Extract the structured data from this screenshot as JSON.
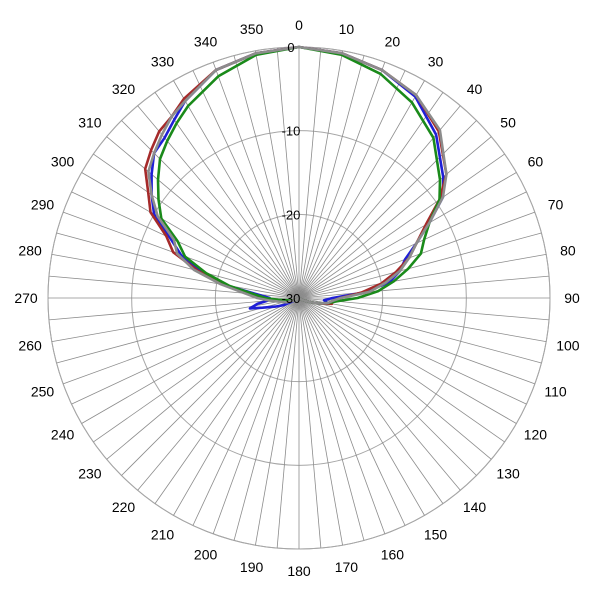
{
  "chart_data": {
    "type": "polar-line",
    "title": "",
    "angle_direction": "clockwise",
    "angle_zero": "top",
    "angle_ticks": [
      0,
      10,
      20,
      30,
      40,
      50,
      60,
      70,
      80,
      90,
      100,
      110,
      120,
      130,
      140,
      150,
      160,
      170,
      180,
      190,
      200,
      210,
      220,
      230,
      240,
      250,
      260,
      270,
      280,
      290,
      300,
      310,
      320,
      330,
      340,
      350
    ],
    "radial_ticks": [
      0,
      -10,
      -20,
      -30
    ],
    "radial_range": [
      -30,
      0
    ],
    "grid": true,
    "series": [
      {
        "color": "#1f1fd6",
        "points": [
          [
            0,
            0
          ],
          [
            10,
            -0.3
          ],
          [
            20,
            -1.0
          ],
          [
            30,
            -2.2
          ],
          [
            40,
            -4.5
          ],
          [
            50,
            -7.5
          ],
          [
            55,
            -9.0
          ],
          [
            60,
            -12.0
          ],
          [
            65,
            -14.5
          ],
          [
            70,
            -16.5
          ],
          [
            75,
            -17.5
          ],
          [
            80,
            -19.0
          ],
          [
            85,
            -22.0
          ],
          [
            90,
            -26.0
          ],
          [
            95,
            -27.0
          ],
          [
            100,
            -26.5
          ],
          [
            105,
            -27.5
          ],
          [
            110,
            -28.5
          ],
          [
            120,
            -29.5
          ],
          [
            180,
            -30
          ],
          [
            240,
            -29.5
          ],
          [
            245,
            -28.0
          ],
          [
            250,
            -27.0
          ],
          [
            255,
            -25.5
          ],
          [
            258,
            -24.0
          ],
          [
            262,
            -25.0
          ],
          [
            266,
            -26.5
          ],
          [
            270,
            -26.5
          ],
          [
            275,
            -25.0
          ],
          [
            280,
            -21.0
          ],
          [
            285,
            -18.0
          ],
          [
            290,
            -15.0
          ],
          [
            295,
            -13.0
          ],
          [
            300,
            -10.0
          ],
          [
            305,
            -8.5
          ],
          [
            310,
            -7.0
          ],
          [
            315,
            -5.5
          ],
          [
            320,
            -5.0
          ],
          [
            325,
            -4.0
          ],
          [
            330,
            -2.8
          ],
          [
            340,
            -1.0
          ],
          [
            350,
            -0.3
          ]
        ]
      },
      {
        "color": "#a52a2a",
        "points": [
          [
            0,
            0
          ],
          [
            10,
            -0.3
          ],
          [
            20,
            -1.0
          ],
          [
            30,
            -2.0
          ],
          [
            40,
            -4.0
          ],
          [
            50,
            -7.0
          ],
          [
            55,
            -9.5
          ],
          [
            60,
            -12.5
          ],
          [
            65,
            -14.5
          ],
          [
            70,
            -16.0
          ],
          [
            75,
            -18.0
          ],
          [
            80,
            -20.0
          ],
          [
            85,
            -22.5
          ],
          [
            90,
            -25.0
          ],
          [
            95,
            -26.0
          ],
          [
            100,
            -26.0
          ],
          [
            105,
            -27.5
          ],
          [
            110,
            -28.5
          ],
          [
            120,
            -29.5
          ],
          [
            180,
            -30
          ],
          [
            240,
            -29.5
          ],
          [
            250,
            -29.0
          ],
          [
            260,
            -28.0
          ],
          [
            265,
            -27.0
          ],
          [
            270,
            -25.5
          ],
          [
            275,
            -24.0
          ],
          [
            280,
            -21.0
          ],
          [
            285,
            -17.5
          ],
          [
            290,
            -14.0
          ],
          [
            295,
            -12.5
          ],
          [
            300,
            -9.5
          ],
          [
            305,
            -8.0
          ],
          [
            310,
            -6.0
          ],
          [
            315,
            -5.0
          ],
          [
            320,
            -4.0
          ],
          [
            325,
            -3.5
          ],
          [
            330,
            -2.5
          ],
          [
            340,
            -1.0
          ],
          [
            350,
            -0.3
          ]
        ]
      },
      {
        "color": "#1a8a1a",
        "points": [
          [
            0,
            0
          ],
          [
            10,
            -0.5
          ],
          [
            20,
            -1.5
          ],
          [
            30,
            -3.0
          ],
          [
            40,
            -5.0
          ],
          [
            50,
            -8.0
          ],
          [
            55,
            -9.5
          ],
          [
            60,
            -12.0
          ],
          [
            65,
            -13.5
          ],
          [
            70,
            -14.5
          ],
          [
            75,
            -16.5
          ],
          [
            80,
            -18.5
          ],
          [
            85,
            -20.5
          ],
          [
            90,
            -23.0
          ],
          [
            95,
            -25.5
          ],
          [
            100,
            -26.5
          ],
          [
            105,
            -27.5
          ],
          [
            110,
            -28.5
          ],
          [
            120,
            -29.5
          ],
          [
            180,
            -30
          ],
          [
            240,
            -29.5
          ],
          [
            250,
            -29.0
          ],
          [
            260,
            -28.5
          ],
          [
            265,
            -27.5
          ],
          [
            270,
            -26.0
          ],
          [
            275,
            -24.5
          ],
          [
            280,
            -21.5
          ],
          [
            285,
            -18.5
          ],
          [
            290,
            -15.5
          ],
          [
            295,
            -14.0
          ],
          [
            300,
            -11.0
          ],
          [
            305,
            -9.5
          ],
          [
            310,
            -8.0
          ],
          [
            315,
            -6.5
          ],
          [
            320,
            -5.5
          ],
          [
            325,
            -4.5
          ],
          [
            330,
            -3.5
          ],
          [
            340,
            -1.8
          ],
          [
            350,
            -0.5
          ]
        ]
      },
      {
        "color": "#8c8c8c",
        "points": [
          [
            0,
            0
          ],
          [
            10,
            -0.3
          ],
          [
            20,
            -1.0
          ],
          [
            30,
            -2.0
          ],
          [
            40,
            -3.8
          ],
          [
            50,
            -7.0
          ],
          [
            55,
            -9.0
          ],
          [
            60,
            -12.0
          ],
          [
            65,
            -14.5
          ],
          [
            70,
            -16.0
          ],
          [
            75,
            -17.5
          ],
          [
            80,
            -19.5
          ],
          [
            85,
            -21.5
          ],
          [
            90,
            -25.0
          ],
          [
            95,
            -26.0
          ],
          [
            100,
            -26.5
          ],
          [
            105,
            -27.5
          ],
          [
            110,
            -28.5
          ],
          [
            120,
            -29.5
          ],
          [
            180,
            -30
          ],
          [
            240,
            -29.5
          ],
          [
            250,
            -28.5
          ],
          [
            260,
            -27.5
          ],
          [
            265,
            -26.5
          ],
          [
            270,
            -25.0
          ],
          [
            275,
            -23.5
          ],
          [
            280,
            -20.5
          ],
          [
            285,
            -17.0
          ],
          [
            290,
            -14.5
          ],
          [
            295,
            -13.5
          ],
          [
            300,
            -10.5
          ],
          [
            305,
            -8.5
          ],
          [
            310,
            -6.5
          ],
          [
            315,
            -5.5
          ],
          [
            320,
            -4.5
          ],
          [
            325,
            -3.5
          ],
          [
            330,
            -2.8
          ],
          [
            340,
            -1.0
          ],
          [
            350,
            -0.3
          ]
        ]
      }
    ]
  }
}
